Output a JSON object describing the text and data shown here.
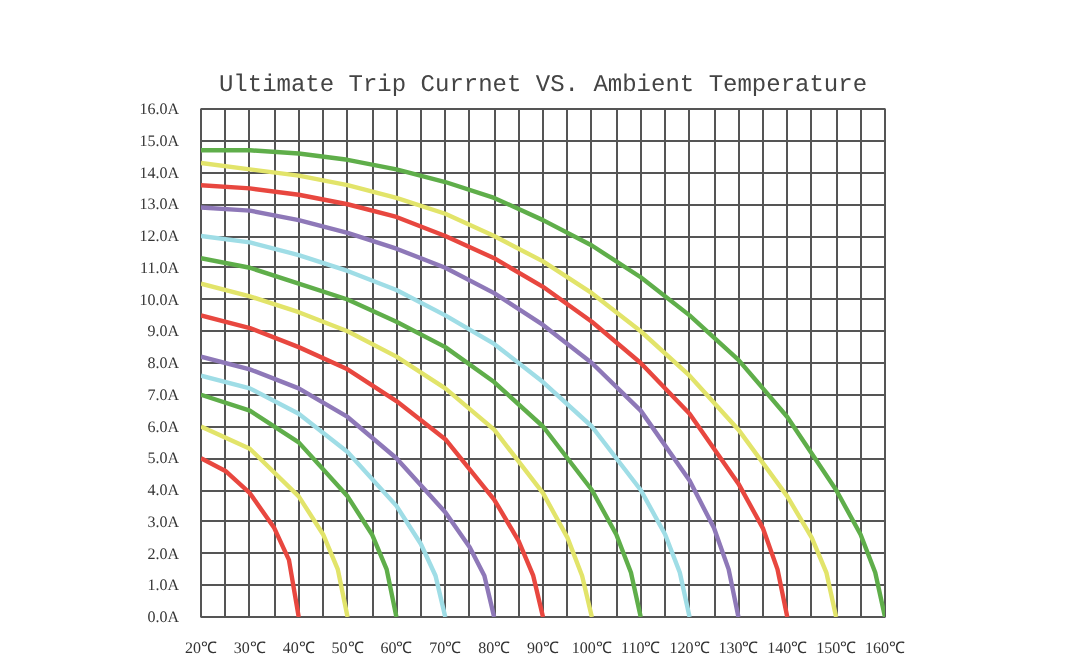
{
  "chart_data": {
    "type": "line",
    "title": "Ultimate Trip Currnet VS. Ambient Temperature",
    "xlim": [
      20,
      160
    ],
    "ylim": [
      0,
      16
    ],
    "xticks": [
      {
        "value": 20,
        "label": "20℃"
      },
      {
        "value": 25,
        "label": null
      },
      {
        "value": 30,
        "label": "30℃"
      },
      {
        "value": 35,
        "label": null
      },
      {
        "value": 40,
        "label": "40℃"
      },
      {
        "value": 45,
        "label": null
      },
      {
        "value": 50,
        "label": "50℃"
      },
      {
        "value": 55,
        "label": null
      },
      {
        "value": 60,
        "label": "60℃"
      },
      {
        "value": 65,
        "label": null
      },
      {
        "value": 70,
        "label": "70℃"
      },
      {
        "value": 75,
        "label": null
      },
      {
        "value": 80,
        "label": "80℃"
      },
      {
        "value": 85,
        "label": null
      },
      {
        "value": 90,
        "label": "90℃"
      },
      {
        "value": 95,
        "label": null
      },
      {
        "value": 100,
        "label": "100℃"
      },
      {
        "value": 105,
        "label": null
      },
      {
        "value": 110,
        "label": "110℃"
      },
      {
        "value": 115,
        "label": null
      },
      {
        "value": 120,
        "label": "120℃"
      },
      {
        "value": 125,
        "label": null
      },
      {
        "value": 130,
        "label": "130℃"
      },
      {
        "value": 135,
        "label": null
      },
      {
        "value": 140,
        "label": "140℃"
      },
      {
        "value": 145,
        "label": null
      },
      {
        "value": 150,
        "label": "150℃"
      },
      {
        "value": 155,
        "label": null
      },
      {
        "value": 160,
        "label": "160℃"
      }
    ],
    "yticks": [
      {
        "value": 0,
        "label": "0.0A"
      },
      {
        "value": 1,
        "label": "1.0A"
      },
      {
        "value": 2,
        "label": "2.0A"
      },
      {
        "value": 3,
        "label": "3.0A"
      },
      {
        "value": 4,
        "label": "4.0A"
      },
      {
        "value": 5,
        "label": "5.0A"
      },
      {
        "value": 6,
        "label": "6.0A"
      },
      {
        "value": 7,
        "label": "7.0A"
      },
      {
        "value": 8,
        "label": "8.0A"
      },
      {
        "value": 9,
        "label": "9.0A"
      },
      {
        "value": 10,
        "label": "10.0A"
      },
      {
        "value": 11,
        "label": "11.0A"
      },
      {
        "value": 12,
        "label": "12.0A"
      },
      {
        "value": 13,
        "label": "13.0A"
      },
      {
        "value": 14,
        "label": "14.0A"
      },
      {
        "value": 15,
        "label": "15.0A"
      },
      {
        "value": 16,
        "label": "16.0A"
      }
    ],
    "grid": true,
    "marker": "none",
    "line_style": "solid",
    "series": [
      {
        "color": "#e8473f",
        "x": [
          20,
          25,
          30,
          35,
          38,
          40
        ],
        "values": [
          5.0,
          4.6,
          3.9,
          2.8,
          1.8,
          0
        ]
      },
      {
        "color": "#e2e46a",
        "x": [
          20,
          30,
          40,
          45,
          48,
          50
        ],
        "values": [
          6.0,
          5.3,
          3.8,
          2.6,
          1.5,
          0
        ]
      },
      {
        "color": "#5fae4a",
        "x": [
          20,
          30,
          40,
          50,
          55,
          58,
          60
        ],
        "values": [
          7.0,
          6.5,
          5.5,
          3.8,
          2.6,
          1.5,
          0
        ]
      },
      {
        "color": "#9fdde6",
        "x": [
          20,
          30,
          40,
          50,
          60,
          65,
          68,
          70
        ],
        "values": [
          7.6,
          7.2,
          6.4,
          5.2,
          3.5,
          2.3,
          1.3,
          0
        ]
      },
      {
        "color": "#8e78b8",
        "x": [
          20,
          30,
          40,
          50,
          60,
          70,
          75,
          78,
          80
        ],
        "values": [
          8.2,
          7.8,
          7.2,
          6.3,
          5.0,
          3.3,
          2.2,
          1.3,
          0
        ]
      },
      {
        "color": "#e8473f",
        "x": [
          20,
          30,
          40,
          50,
          60,
          70,
          80,
          85,
          88,
          90
        ],
        "values": [
          9.5,
          9.1,
          8.5,
          7.8,
          6.8,
          5.6,
          3.7,
          2.4,
          1.3,
          0
        ]
      },
      {
        "color": "#e2e46a",
        "x": [
          20,
          30,
          40,
          50,
          60,
          70,
          80,
          90,
          95,
          98,
          100
        ],
        "values": [
          10.5,
          10.1,
          9.6,
          9.0,
          8.2,
          7.2,
          5.9,
          3.9,
          2.5,
          1.3,
          0
        ]
      },
      {
        "color": "#5fae4a",
        "x": [
          20,
          30,
          40,
          50,
          60,
          70,
          80,
          90,
          100,
          105,
          108,
          110
        ],
        "values": [
          11.3,
          11.0,
          10.5,
          10.0,
          9.3,
          8.5,
          7.4,
          6.0,
          4.0,
          2.6,
          1.4,
          0
        ]
      },
      {
        "color": "#9fdde6",
        "x": [
          20,
          30,
          40,
          50,
          60,
          70,
          80,
          90,
          100,
          110,
          115,
          118,
          120
        ],
        "values": [
          12.0,
          11.8,
          11.4,
          10.9,
          10.3,
          9.5,
          8.6,
          7.4,
          6.0,
          4.0,
          2.6,
          1.4,
          0
        ]
      },
      {
        "color": "#8e78b8",
        "x": [
          20,
          30,
          40,
          50,
          60,
          70,
          80,
          90,
          100,
          110,
          120,
          125,
          128,
          130
        ],
        "values": [
          12.9,
          12.8,
          12.5,
          12.1,
          11.6,
          11.0,
          10.2,
          9.2,
          8.0,
          6.5,
          4.3,
          2.8,
          1.5,
          0
        ]
      },
      {
        "color": "#e8473f",
        "x": [
          20,
          30,
          40,
          50,
          60,
          70,
          80,
          90,
          100,
          110,
          120,
          130,
          135,
          138,
          140
        ],
        "values": [
          13.6,
          13.5,
          13.3,
          13.0,
          12.6,
          12.0,
          11.3,
          10.4,
          9.3,
          8.0,
          6.4,
          4.2,
          2.8,
          1.5,
          0
        ]
      },
      {
        "color": "#e2e46a",
        "x": [
          20,
          30,
          40,
          50,
          60,
          70,
          80,
          90,
          100,
          110,
          120,
          130,
          140,
          145,
          148,
          150
        ],
        "values": [
          14.3,
          14.1,
          13.9,
          13.6,
          13.2,
          12.7,
          12.0,
          11.2,
          10.2,
          9.0,
          7.6,
          5.9,
          3.8,
          2.5,
          1.4,
          0
        ]
      },
      {
        "color": "#5fae4a",
        "x": [
          20,
          30,
          40,
          50,
          60,
          70,
          80,
          90,
          100,
          110,
          120,
          130,
          140,
          150,
          155,
          158,
          160
        ],
        "values": [
          14.7,
          14.7,
          14.6,
          14.4,
          14.1,
          13.7,
          13.2,
          12.5,
          11.7,
          10.7,
          9.5,
          8.1,
          6.3,
          4.0,
          2.6,
          1.4,
          0
        ]
      }
    ]
  }
}
